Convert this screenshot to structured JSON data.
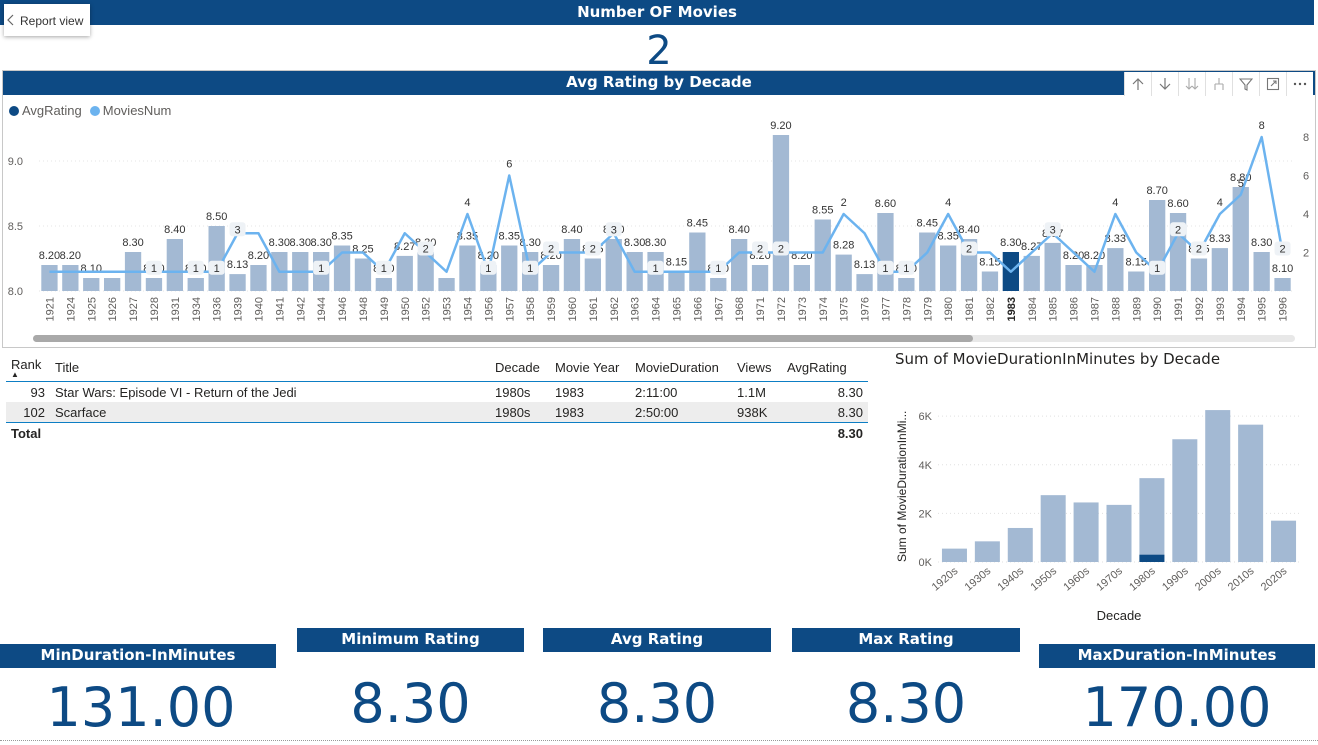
{
  "header": {
    "title": "Number OF Movies",
    "report_view_label": "Report view"
  },
  "movie_count": "2",
  "main_chart": {
    "title": "Avg Rating by Decade",
    "legend": [
      {
        "label": "AvgRating",
        "color": "#0d4a84"
      },
      {
        "label": "MoviesNum",
        "color": "#6cb3ef"
      }
    ],
    "toolbar_icons": [
      "up-arrow-icon",
      "down-arrow-icon",
      "double-down-arrow-icon",
      "expand-hierarchy-icon",
      "filter-icon",
      "focus-mode-icon",
      "more-options-icon"
    ]
  },
  "chart_data": [
    {
      "type": "bar",
      "title": "Avg Rating by Decade",
      "series_bar_name": "AvgRating",
      "series_line_name": "MoviesNum",
      "categories": [
        "1921",
        "1924",
        "1925",
        "1926",
        "1927",
        "1928",
        "1931",
        "1934",
        "1936",
        "1939",
        "1940",
        "1941",
        "1942",
        "1944",
        "1946",
        "1948",
        "1949",
        "1950",
        "1952",
        "1953",
        "1954",
        "1956",
        "1957",
        "1958",
        "1959",
        "1960",
        "1961",
        "1962",
        "1963",
        "1964",
        "1965",
        "1966",
        "1967",
        "1968",
        "1971",
        "1972",
        "1973",
        "1974",
        "1975",
        "1976",
        "1977",
        "1978",
        "1979",
        "1980",
        "1981",
        "1982",
        "1983",
        "1984",
        "1985",
        "1986",
        "1987",
        "1988",
        "1989",
        "1990",
        "1991",
        "1992",
        "1993",
        "1994",
        "1995",
        "1996"
      ],
      "values": [
        8.2,
        8.2,
        8.1,
        8.1,
        8.3,
        8.1,
        8.4,
        8.1,
        8.5,
        8.13,
        8.2,
        8.3,
        8.3,
        8.3,
        8.35,
        8.25,
        8.1,
        8.27,
        8.3,
        8.1,
        8.35,
        8.2,
        8.35,
        8.3,
        8.2,
        8.4,
        8.25,
        8.4,
        8.3,
        8.3,
        8.15,
        8.45,
        8.1,
        8.4,
        8.2,
        9.2,
        8.2,
        8.55,
        8.28,
        8.13,
        8.6,
        8.1,
        8.45,
        8.35,
        8.4,
        8.15,
        8.3,
        8.27,
        8.37,
        8.2,
        8.2,
        8.33,
        8.15,
        8.7,
        8.6,
        8.25,
        8.33,
        8.8,
        8.3,
        8.1
      ],
      "line_values": [
        1,
        1,
        1,
        1,
        1,
        1,
        1,
        1,
        1,
        3,
        3,
        1,
        1,
        1,
        2,
        2,
        1,
        3,
        2,
        1,
        4,
        1,
        6,
        1,
        2,
        2,
        2,
        3,
        1,
        1,
        1,
        1,
        1,
        2,
        2,
        2,
        2,
        2,
        4,
        3,
        1,
        1,
        2,
        4,
        2,
        2,
        1,
        2,
        3,
        2,
        1,
        4,
        2,
        1,
        3,
        2,
        4,
        5,
        8,
        2
      ],
      "bar_labels": [
        "8.20",
        "8.20",
        "8.10",
        "",
        "8.30",
        "8.10",
        "8.40",
        "8.10",
        "8.50",
        "8.13",
        "8.20",
        "8.30",
        "8.30",
        "8.30",
        "8.35",
        "8.25",
        "8.10",
        "8.27",
        "8.30",
        "",
        "8.35",
        "8.20",
        "8.35",
        "8.30",
        "8.20",
        "8.40",
        "8.25",
        "8.40",
        "8.30",
        "8.30",
        "8.15",
        "8.45",
        "8.10",
        "8.40",
        "8.20",
        "9.20",
        "8.20",
        "8.55",
        "8.28",
        "8.13",
        "8.60",
        "8.10",
        "8.45",
        "8.35",
        "8.40",
        "8.15",
        "8.30",
        "8.27",
        "8.37",
        "8.20",
        "8.20",
        "8.33",
        "8.15",
        "8.70",
        "8.60",
        "8.25",
        "8.33",
        "8.80",
        "8.30",
        "8.10"
      ],
      "line_labels": [
        "",
        "",
        "",
        "",
        "",
        "1",
        "",
        "1",
        "1",
        "3",
        "",
        "",
        "",
        "1",
        "",
        "",
        "1",
        "",
        "2",
        "",
        "4",
        "1",
        "6",
        "1",
        "2",
        "",
        "2",
        "3",
        "",
        "1",
        "",
        "",
        "1",
        "",
        "2",
        "2",
        "",
        "",
        "2",
        "",
        "1",
        "1",
        "",
        "4",
        "2",
        "",
        "",
        "",
        "3",
        "",
        "",
        "4",
        "",
        "1",
        "2",
        "2",
        "4",
        "5",
        "8",
        "2"
      ],
      "highlighted_category": "1983",
      "highlight_color": "#0d4a84",
      "bar_color": "#a3b9d3",
      "line_color": "#6cb3ef",
      "ylim_left": [
        8.0,
        9.2
      ],
      "yticks_left": [
        "8.0",
        "8.5",
        "9.0"
      ],
      "ylim_right": [
        0,
        8
      ],
      "yticks_right": [
        "2",
        "4",
        "6",
        "8"
      ]
    },
    {
      "type": "bar",
      "title": "Sum of MovieDurationInMinutes by Decade",
      "xlabel": "Decade",
      "ylabel": "Sum of MovieDurationInMi...",
      "categories": [
        "1920s",
        "1930s",
        "1940s",
        "1950s",
        "1960s",
        "1970s",
        "1980s",
        "1990s",
        "2000s",
        "2010s",
        "2020s"
      ],
      "values": [
        550,
        850,
        1400,
        2750,
        2450,
        2350,
        3450,
        5050,
        6250,
        5650,
        1700
      ],
      "highlight_values": [
        0,
        0,
        0,
        0,
        0,
        0,
        300,
        0,
        0,
        0,
        0
      ],
      "yticks": [
        "0K",
        "2K",
        "4K",
        "6K"
      ],
      "ylim": [
        0,
        6500
      ],
      "bar_color": "#a3b9d3",
      "highlight_color": "#0d4a84"
    }
  ],
  "table": {
    "columns": [
      "Rank",
      "Title",
      "Decade",
      "Movie Year",
      "MovieDuration",
      "Views",
      "AvgRating"
    ],
    "rows": [
      [
        "93",
        "Star Wars: Episode VI - Return of the Jedi",
        "1980s",
        "1983",
        "2:11:00",
        "1.1M",
        "8.30"
      ],
      [
        "102",
        "Scarface",
        "1980s",
        "1983",
        "2:50:00",
        "938K",
        "8.30"
      ]
    ],
    "total_label": "Total",
    "total_value": "8.30"
  },
  "kpis": [
    {
      "label": "MinDuration-InMinutes",
      "value": "131.00"
    },
    {
      "label": "Minimum Rating",
      "value": "8.30"
    },
    {
      "label": "Avg Rating",
      "value": "8.30"
    },
    {
      "label": "Max Rating",
      "value": "8.30"
    },
    {
      "label": "MaxDuration-InMinutes",
      "value": "170.00"
    }
  ]
}
